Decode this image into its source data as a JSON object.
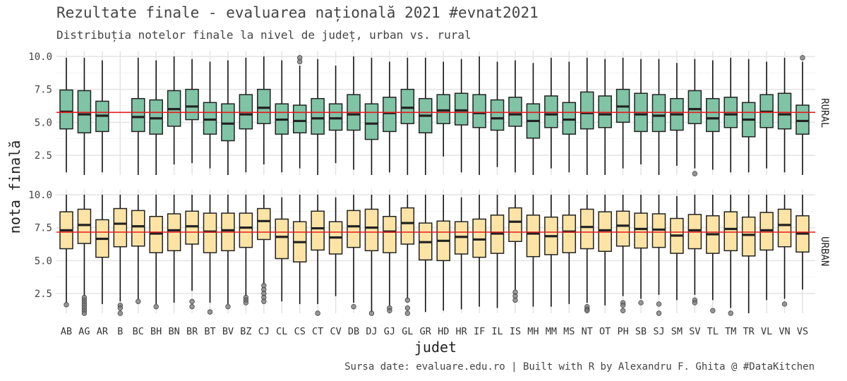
{
  "chart_data": {
    "type": "boxplot",
    "title": "Rezultate finale - evaluarea națională 2021 #evnat2021",
    "subtitle": "Distribuția notelor finale la nivel de județ, urban vs. rural",
    "caption": "Sursa date: evaluare.edu.ro | Built with R by Alexandru F. Ghita @ #DataKitchen",
    "xlabel": "judet",
    "ylabel": "nota finală",
    "ylim": [
      1,
      10.4
    ],
    "yticks": [
      "2.5",
      "5.0",
      "7.5",
      "10.0"
    ],
    "ytick_values": [
      2.5,
      5.0,
      7.5,
      10.0
    ],
    "grid": true,
    "categories": [
      "AB",
      "AG",
      "AR",
      "B",
      "BC",
      "BH",
      "BN",
      "BR",
      "BT",
      "BV",
      "BZ",
      "CJ",
      "CL",
      "CS",
      "CT",
      "CV",
      "DB",
      "DJ",
      "GJ",
      "GL",
      "GR",
      "HD",
      "HR",
      "IF",
      "IL",
      "IS",
      "MH",
      "MM",
      "MS",
      "NT",
      "OT",
      "PH",
      "SB",
      "SJ",
      "SM",
      "SV",
      "TL",
      "TM",
      "TR",
      "VL",
      "VN",
      "VS"
    ],
    "box_format": [
      "whisker_low",
      "q1",
      "median",
      "q3",
      "whisker_high",
      "outliers"
    ],
    "panels": [
      {
        "name": "RURAL",
        "fill": "#7fc4a5",
        "reference_line": 5.75,
        "reference_color": "#e41a1c",
        "boxes": [
          [
            1.2,
            4.5,
            5.8,
            7.45,
            9.9,
            []
          ],
          [
            1.0,
            4.2,
            5.6,
            7.4,
            9.9,
            []
          ],
          [
            1.2,
            4.3,
            5.5,
            6.6,
            9.7,
            []
          ],
          null,
          [
            1.0,
            4.3,
            5.4,
            6.8,
            9.9,
            []
          ],
          [
            1.0,
            4.1,
            5.3,
            6.7,
            9.7,
            []
          ],
          [
            1.8,
            4.7,
            6.0,
            7.4,
            10.0,
            []
          ],
          [
            1.9,
            5.2,
            6.2,
            7.5,
            9.8,
            []
          ],
          [
            1.5,
            4.1,
            5.2,
            6.5,
            9.6,
            []
          ],
          [
            1.0,
            3.6,
            4.9,
            6.4,
            9.7,
            []
          ],
          [
            1.2,
            4.5,
            5.6,
            7.1,
            9.9,
            []
          ],
          [
            1.8,
            4.9,
            6.1,
            7.5,
            10.0,
            []
          ],
          [
            1.2,
            4.1,
            5.2,
            6.4,
            9.7,
            []
          ],
          [
            1.5,
            4.2,
            5.1,
            6.3,
            9.3,
            [
              9.6,
              9.9
            ]
          ],
          [
            1.0,
            4.1,
            5.3,
            6.8,
            9.8,
            []
          ],
          [
            1.9,
            4.4,
            5.3,
            6.4,
            9.3,
            []
          ],
          [
            1.4,
            4.4,
            5.6,
            7.1,
            10.0,
            []
          ],
          [
            1.0,
            3.7,
            4.9,
            6.4,
            9.9,
            []
          ],
          [
            1.2,
            4.3,
            5.7,
            6.9,
            9.6,
            []
          ],
          [
            1.0,
            4.9,
            6.1,
            7.5,
            9.9,
            []
          ],
          [
            1.0,
            4.2,
            5.5,
            6.8,
            9.9,
            []
          ],
          [
            2.4,
            4.9,
            5.9,
            7.1,
            9.6,
            []
          ],
          [
            1.2,
            4.8,
            5.9,
            7.2,
            9.8,
            []
          ],
          [
            1.0,
            4.6,
            5.7,
            7.1,
            10.0,
            []
          ],
          [
            1.6,
            4.4,
            5.3,
            6.7,
            9.6,
            []
          ],
          [
            1.2,
            4.7,
            5.6,
            6.9,
            9.7,
            []
          ],
          [
            1.0,
            3.8,
            5.1,
            6.4,
            9.5,
            []
          ],
          [
            1.5,
            4.6,
            5.6,
            7.0,
            9.9,
            []
          ],
          [
            1.2,
            4.1,
            5.2,
            6.5,
            9.6,
            []
          ],
          [
            1.0,
            4.5,
            5.7,
            7.3,
            9.9,
            []
          ],
          [
            1.0,
            4.6,
            5.6,
            7.0,
            9.8,
            []
          ],
          [
            1.5,
            5.0,
            6.2,
            7.5,
            9.9,
            []
          ],
          [
            1.8,
            4.3,
            5.6,
            7.2,
            9.8,
            []
          ],
          [
            1.0,
            4.3,
            5.5,
            7.1,
            9.8,
            []
          ],
          [
            1.7,
            4.4,
            5.6,
            6.8,
            9.5,
            []
          ],
          [
            1.5,
            4.9,
            6.0,
            7.4,
            9.8,
            [
              1.1
            ]
          ],
          [
            1.4,
            4.3,
            5.3,
            6.8,
            9.7,
            []
          ],
          [
            1.2,
            4.6,
            5.6,
            6.9,
            9.9,
            []
          ],
          [
            1.2,
            3.9,
            5.2,
            6.5,
            9.8,
            []
          ],
          [
            1.5,
            4.6,
            5.8,
            7.1,
            9.6,
            []
          ],
          [
            1.2,
            4.5,
            5.6,
            7.2,
            9.9,
            []
          ],
          [
            1.0,
            4.1,
            5.1,
            6.3,
            9.6,
            [
              9.9
            ]
          ]
        ]
      },
      {
        "name": "URBAN",
        "fill": "#fde4a5",
        "reference_line": 7.16,
        "reference_color": "#e41a1c",
        "boxes": [
          [
            1.8,
            5.9,
            7.3,
            8.7,
            10.0,
            [
              1.65
            ]
          ],
          [
            2.3,
            6.3,
            7.7,
            8.9,
            10.0,
            [
              2.2,
              2.0,
              1.8,
              1.6,
              1.4,
              1.2,
              1.0
            ]
          ],
          [
            1.7,
            5.25,
            6.65,
            8.1,
            10.0,
            []
          ],
          [
            1.9,
            6.05,
            7.8,
            8.95,
            10.0,
            [
              1.6,
              1.4,
              1.0
            ]
          ],
          [
            2.1,
            6.1,
            7.6,
            8.8,
            10.0,
            [
              1.9
            ]
          ],
          [
            1.7,
            5.6,
            7.05,
            8.35,
            10.0,
            [
              1.5
            ]
          ],
          [
            1.8,
            5.75,
            7.3,
            8.55,
            10.0,
            []
          ],
          [
            2.7,
            6.25,
            7.6,
            8.75,
            10.0,
            [
              1.9,
              1.5
            ]
          ],
          [
            1.8,
            5.6,
            7.2,
            8.6,
            10.0,
            [
              1.1
            ]
          ],
          [
            1.7,
            5.75,
            7.3,
            8.6,
            10.0,
            [
              1.5
            ]
          ],
          [
            2.3,
            6.0,
            7.5,
            8.6,
            10.0,
            [
              2.2,
              2.0,
              1.8
            ]
          ],
          [
            3.2,
            6.6,
            8.0,
            8.95,
            10.0,
            [
              3.1,
              2.8,
              2.5,
              2.2,
              1.9
            ]
          ],
          [
            1.9,
            5.15,
            6.8,
            8.15,
            9.8,
            []
          ],
          [
            1.7,
            4.9,
            6.4,
            7.95,
            10.0,
            []
          ],
          [
            1.7,
            5.8,
            7.45,
            8.75,
            10.0,
            [
              1.0
            ]
          ],
          [
            2.3,
            5.5,
            6.75,
            7.95,
            9.8,
            []
          ],
          [
            1.8,
            6.0,
            7.6,
            8.8,
            10.0,
            [
              1.5
            ]
          ],
          [
            1.1,
            5.75,
            7.5,
            8.9,
            10.0,
            [
              1.0
            ]
          ],
          [
            1.6,
            5.6,
            7.2,
            8.35,
            10.0,
            [
              1.4,
              1.2
            ]
          ],
          [
            2.1,
            6.25,
            7.85,
            9.0,
            10.0,
            [
              2.0,
              1.4,
              1.0
            ]
          ],
          [
            1.1,
            5.05,
            6.4,
            7.85,
            10.0,
            []
          ],
          [
            1.2,
            5.0,
            6.5,
            8.0,
            10.0,
            []
          ],
          [
            1.3,
            5.5,
            6.8,
            7.95,
            9.8,
            []
          ],
          [
            1.5,
            5.25,
            6.6,
            8.15,
            10.0,
            []
          ],
          [
            1.4,
            5.55,
            7.05,
            8.45,
            10.0,
            []
          ],
          [
            2.8,
            6.45,
            7.95,
            9.0,
            10.0,
            [
              2.6,
              2.3,
              2.0
            ]
          ],
          [
            1.5,
            5.3,
            7.05,
            8.45,
            10.0,
            []
          ],
          [
            1.5,
            5.45,
            6.85,
            8.3,
            10.0,
            []
          ],
          [
            1.7,
            5.6,
            7.2,
            8.45,
            10.0,
            []
          ],
          [
            1.8,
            5.9,
            7.55,
            8.9,
            10.0,
            [
              1.5,
              1.3,
              1.2
            ]
          ],
          [
            1.6,
            5.7,
            7.3,
            8.7,
            10.0,
            []
          ],
          [
            2.3,
            6.1,
            7.65,
            8.75,
            10.0,
            [
              1.8,
              1.6,
              1.2
            ]
          ],
          [
            2.1,
            5.95,
            7.4,
            8.6,
            10.0,
            [
              1.8
            ]
          ],
          [
            2.4,
            6.0,
            7.35,
            8.55,
            10.0,
            [
              1.7,
              1.0
            ]
          ],
          [
            2.0,
            5.55,
            6.9,
            8.2,
            9.9,
            []
          ],
          [
            2.4,
            5.9,
            7.3,
            8.5,
            10.0,
            [
              2.0,
              1.8
            ]
          ],
          [
            2.0,
            5.55,
            7.0,
            8.4,
            10.0,
            [
              1.2
            ]
          ],
          [
            1.4,
            5.75,
            7.4,
            8.7,
            10.0,
            [
              1.0
            ]
          ],
          [
            1.0,
            5.35,
            6.95,
            8.3,
            10.0,
            []
          ],
          [
            2.0,
            5.8,
            7.3,
            8.65,
            10.0,
            []
          ],
          [
            2.1,
            6.05,
            7.7,
            8.9,
            10.0,
            [
              1.7
            ]
          ],
          [
            2.8,
            5.65,
            7.05,
            8.4,
            10.0,
            []
          ]
        ]
      }
    ]
  }
}
